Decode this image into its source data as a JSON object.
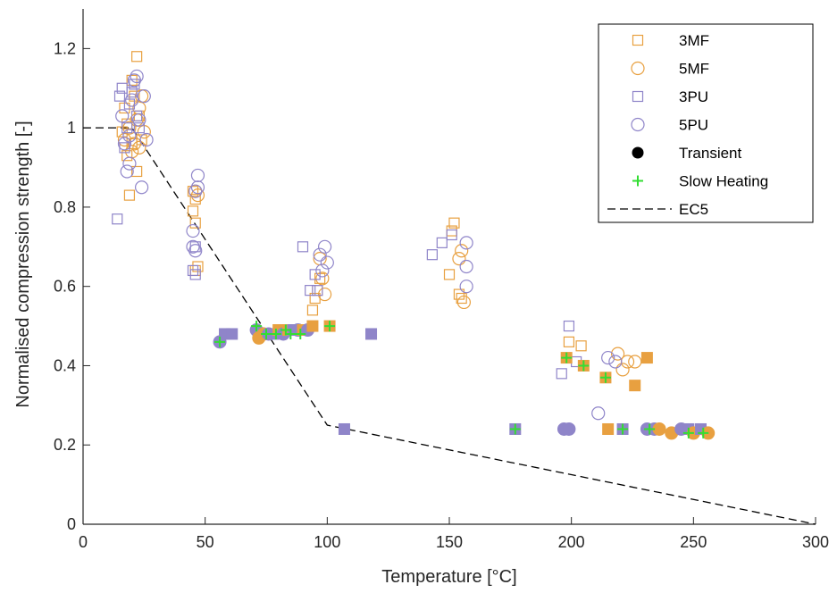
{
  "chart_data": {
    "type": "scatter",
    "title": "",
    "xlabel": "Temperature [°C]",
    "ylabel": "Normalised compression strength [-]",
    "xlim": [
      0,
      300
    ],
    "ylim": [
      0,
      1.3
    ],
    "x_ticks": [
      "0",
      "50",
      "100",
      "150",
      "200",
      "250",
      "300"
    ],
    "y_ticks": [
      "0",
      "0.2",
      "0.4",
      "0.6",
      "0.8",
      "1",
      "1.2"
    ],
    "grid": false,
    "legend_position": "top-right",
    "colors": {
      "MF": "#E8A040",
      "PU": "#8F85C9",
      "slow_heating": "#33DD33",
      "ec5": "#000000"
    },
    "legend": [
      {
        "label": "3MF",
        "marker": "square-open",
        "color": "#E8A040"
      },
      {
        "label": "5MF",
        "marker": "circle-open",
        "color": "#E8A040"
      },
      {
        "label": "3PU",
        "marker": "square-open",
        "color": "#8F85C9"
      },
      {
        "label": "5PU",
        "marker": "circle-open",
        "color": "#8F85C9"
      },
      {
        "label": "Transient",
        "marker": "circle-filled",
        "color": "#000000"
      },
      {
        "label": "Slow Heating",
        "marker": "plus",
        "color": "#33DD33"
      },
      {
        "label": "EC5",
        "marker": "dash-dot-line",
        "color": "#000000"
      }
    ],
    "series": [
      {
        "name": "3MF",
        "marker": "square-open",
        "color": "#E8A040",
        "points": [
          [
            16,
            0.99
          ],
          [
            17,
            1.05
          ],
          [
            18,
            1.01
          ],
          [
            19,
            0.83
          ],
          [
            20,
            0.96
          ],
          [
            21,
            1.08
          ],
          [
            22,
            1.18
          ],
          [
            22,
            0.89
          ],
          [
            23,
            1.03
          ],
          [
            24,
            0.97
          ],
          [
            18,
            0.93
          ],
          [
            20,
            1.12
          ],
          [
            45,
            0.84
          ],
          [
            45,
            0.79
          ],
          [
            46,
            0.82
          ],
          [
            46,
            0.76
          ],
          [
            46,
            0.64
          ],
          [
            47,
            0.65
          ],
          [
            94,
            0.54
          ],
          [
            95,
            0.57
          ],
          [
            96,
            0.59
          ],
          [
            97,
            0.62
          ],
          [
            150,
            0.63
          ],
          [
            151,
            0.74
          ],
          [
            152,
            0.76
          ],
          [
            154,
            0.58
          ],
          [
            155,
            0.57
          ],
          [
            199,
            0.46
          ],
          [
            204,
            0.45
          ]
        ]
      },
      {
        "name": "5MF",
        "marker": "circle-open",
        "color": "#E8A040",
        "points": [
          [
            17,
            0.97
          ],
          [
            19,
            1.0
          ],
          [
            20,
            0.94
          ],
          [
            21,
            0.96
          ],
          [
            22,
            1.02
          ],
          [
            23,
            1.05
          ],
          [
            24,
            1.08
          ],
          [
            25,
            0.99
          ],
          [
            23,
            0.95
          ],
          [
            46,
            0.84
          ],
          [
            47,
            0.83
          ],
          [
            97,
            0.67
          ],
          [
            98,
            0.62
          ],
          [
            99,
            0.58
          ],
          [
            154,
            0.67
          ],
          [
            155,
            0.69
          ],
          [
            156,
            0.56
          ],
          [
            219,
            0.43
          ],
          [
            221,
            0.39
          ],
          [
            223,
            0.41
          ],
          [
            226,
            0.41
          ]
        ]
      },
      {
        "name": "3PU",
        "marker": "square-open",
        "color": "#8F85C9",
        "points": [
          [
            14,
            0.77
          ],
          [
            15,
            1.08
          ],
          [
            16,
            1.1
          ],
          [
            17,
            0.95
          ],
          [
            18,
            1.0
          ],
          [
            19,
            1.06
          ],
          [
            20,
            1.09
          ],
          [
            21,
            1.11
          ],
          [
            22,
            1.03
          ],
          [
            23,
            1.0
          ],
          [
            45,
            0.64
          ],
          [
            46,
            0.63
          ],
          [
            46,
            0.7
          ],
          [
            90,
            0.7
          ],
          [
            93,
            0.59
          ],
          [
            95,
            0.63
          ],
          [
            96,
            0.59
          ],
          [
            143,
            0.68
          ],
          [
            147,
            0.71
          ],
          [
            151,
            0.73
          ],
          [
            196,
            0.38
          ],
          [
            199,
            0.5
          ],
          [
            202,
            0.41
          ]
        ]
      },
      {
        "name": "5PU",
        "marker": "circle-open",
        "color": "#8F85C9",
        "points": [
          [
            16,
            1.03
          ],
          [
            17,
            0.96
          ],
          [
            18,
            0.89
          ],
          [
            19,
            0.98
          ],
          [
            20,
            1.07
          ],
          [
            21,
            1.12
          ],
          [
            22,
            1.13
          ],
          [
            23,
            1.02
          ],
          [
            24,
            0.85
          ],
          [
            25,
            1.08
          ],
          [
            26,
            0.97
          ],
          [
            19,
            0.91
          ],
          [
            45,
            0.74
          ],
          [
            45,
            0.7
          ],
          [
            46,
            0.69
          ],
          [
            46,
            0.84
          ],
          [
            47,
            0.85
          ],
          [
            47,
            0.88
          ],
          [
            97,
            0.68
          ],
          [
            98,
            0.64
          ],
          [
            99,
            0.7
          ],
          [
            100,
            0.66
          ],
          [
            157,
            0.71
          ],
          [
            157,
            0.65
          ],
          [
            157,
            0.6
          ],
          [
            211,
            0.28
          ],
          [
            215,
            0.42
          ],
          [
            218,
            0.41
          ]
        ]
      },
      {
        "name": "Transient",
        "marker": "filled",
        "color": "#000000",
        "points": [
          {
            "x": 56,
            "y": 0.46,
            "color": "#8F85C9",
            "shape": "circle"
          },
          {
            "x": 58,
            "y": 0.48,
            "color": "#8F85C9",
            "shape": "square"
          },
          {
            "x": 61,
            "y": 0.48,
            "color": "#8F85C9",
            "shape": "square"
          },
          {
            "x": 71,
            "y": 0.49,
            "color": "#8F85C9",
            "shape": "circle"
          },
          {
            "x": 72,
            "y": 0.47,
            "color": "#E8A040",
            "shape": "circle"
          },
          {
            "x": 74,
            "y": 0.48,
            "color": "#E8A040",
            "shape": "circle"
          },
          {
            "x": 76,
            "y": 0.48,
            "color": "#8F85C9",
            "shape": "circle"
          },
          {
            "x": 78,
            "y": 0.48,
            "color": "#8F85C9",
            "shape": "square"
          },
          {
            "x": 80,
            "y": 0.49,
            "color": "#E8A040",
            "shape": "square"
          },
          {
            "x": 82,
            "y": 0.48,
            "color": "#8F85C9",
            "shape": "circle"
          },
          {
            "x": 84,
            "y": 0.49,
            "color": "#E8A040",
            "shape": "square"
          },
          {
            "x": 86,
            "y": 0.49,
            "color": "#8F85C9",
            "shape": "square"
          },
          {
            "x": 88,
            "y": 0.49,
            "color": "#8F85C9",
            "shape": "circle"
          },
          {
            "x": 90,
            "y": 0.49,
            "color": "#E8A040",
            "shape": "square"
          },
          {
            "x": 92,
            "y": 0.49,
            "color": "#8F85C9",
            "shape": "circle"
          },
          {
            "x": 94,
            "y": 0.5,
            "color": "#E8A040",
            "shape": "square"
          },
          {
            "x": 101,
            "y": 0.5,
            "color": "#E8A040",
            "shape": "square"
          },
          {
            "x": 107,
            "y": 0.24,
            "color": "#8F85C9",
            "shape": "square"
          },
          {
            "x": 118,
            "y": 0.48,
            "color": "#8F85C9",
            "shape": "square"
          },
          {
            "x": 177,
            "y": 0.24,
            "color": "#8F85C9",
            "shape": "square"
          },
          {
            "x": 197,
            "y": 0.24,
            "color": "#8F85C9",
            "shape": "circle"
          },
          {
            "x": 198,
            "y": 0.42,
            "color": "#E8A040",
            "shape": "square"
          },
          {
            "x": 199,
            "y": 0.24,
            "color": "#8F85C9",
            "shape": "circle"
          },
          {
            "x": 205,
            "y": 0.4,
            "color": "#E8A040",
            "shape": "square"
          },
          {
            "x": 214,
            "y": 0.37,
            "color": "#E8A040",
            "shape": "square"
          },
          {
            "x": 215,
            "y": 0.24,
            "color": "#E8A040",
            "shape": "square"
          },
          {
            "x": 221,
            "y": 0.24,
            "color": "#8F85C9",
            "shape": "square"
          },
          {
            "x": 226,
            "y": 0.35,
            "color": "#E8A040",
            "shape": "square"
          },
          {
            "x": 231,
            "y": 0.42,
            "color": "#E8A040",
            "shape": "square"
          },
          {
            "x": 231,
            "y": 0.24,
            "color": "#8F85C9",
            "shape": "circle"
          },
          {
            "x": 234,
            "y": 0.24,
            "color": "#8F85C9",
            "shape": "circle"
          },
          {
            "x": 236,
            "y": 0.24,
            "color": "#E8A040",
            "shape": "circle"
          },
          {
            "x": 241,
            "y": 0.23,
            "color": "#E8A040",
            "shape": "circle"
          },
          {
            "x": 245,
            "y": 0.24,
            "color": "#8F85C9",
            "shape": "circle"
          },
          {
            "x": 248,
            "y": 0.24,
            "color": "#8F85C9",
            "shape": "square"
          },
          {
            "x": 250,
            "y": 0.23,
            "color": "#E8A040",
            "shape": "circle"
          },
          {
            "x": 253,
            "y": 0.24,
            "color": "#8F85C9",
            "shape": "square"
          },
          {
            "x": 256,
            "y": 0.23,
            "color": "#E8A040",
            "shape": "circle"
          }
        ]
      },
      {
        "name": "Slow Heating",
        "marker": "plus",
        "color": "#33DD33",
        "points": [
          [
            56,
            0.46
          ],
          [
            71,
            0.5
          ],
          [
            75,
            0.48
          ],
          [
            79,
            0.48
          ],
          [
            83,
            0.49
          ],
          [
            85,
            0.48
          ],
          [
            89,
            0.48
          ],
          [
            101,
            0.5
          ],
          [
            177,
            0.24
          ],
          [
            198,
            0.42
          ],
          [
            205,
            0.4
          ],
          [
            214,
            0.37
          ],
          [
            221,
            0.24
          ],
          [
            232,
            0.24
          ],
          [
            248,
            0.23
          ],
          [
            254,
            0.23
          ]
        ]
      },
      {
        "name": "EC5",
        "marker": "dash-dot-line",
        "color": "#000000",
        "points": [
          [
            0,
            1.0
          ],
          [
            20,
            1.0
          ],
          [
            100,
            0.25
          ],
          [
            300,
            0.0
          ]
        ]
      }
    ]
  }
}
